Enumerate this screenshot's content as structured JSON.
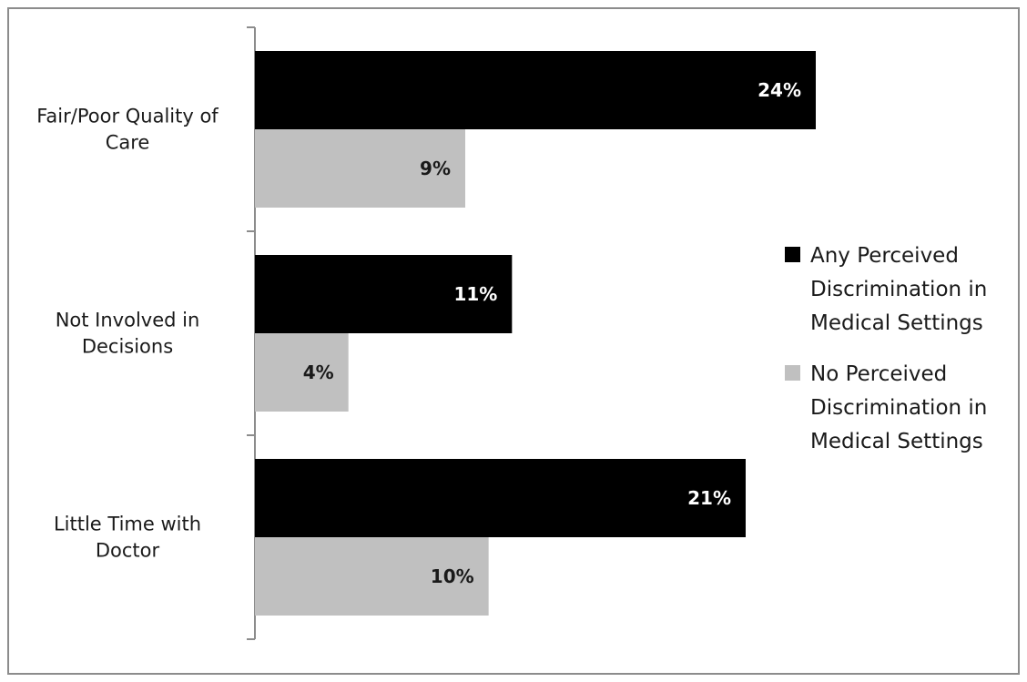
{
  "chart_data": {
    "type": "bar",
    "orientation": "horizontal",
    "categories": [
      "Fair/Poor Quality of Care",
      "Not Involved in Decisions",
      "Little Time with Doctor"
    ],
    "category_lines": [
      [
        "Fair/Poor Quality of",
        "Care"
      ],
      [
        "Not Involved in",
        "Decisions"
      ],
      [
        "Little Time with",
        "Doctor"
      ]
    ],
    "series": [
      {
        "name": "Any Perceived Discrimination in Medical Settings",
        "legend_lines": [
          "Any Perceived",
          "Discrimination in",
          "Medical Settings"
        ],
        "color": "#000000",
        "label_color": "#ffffff",
        "values": [
          24,
          11,
          21
        ],
        "labels": [
          "24%",
          "11%",
          "21%"
        ]
      },
      {
        "name": "No Perceived Discrimination in Medical Settings",
        "legend_lines": [
          "No Perceived",
          "Discrimination in",
          "Medical Settings"
        ],
        "color": "#c0c0c0",
        "label_color": "#1a1a1a",
        "values": [
          9,
          4,
          10
        ],
        "labels": [
          "9%",
          "4%",
          "10%"
        ]
      }
    ],
    "xlim": [
      0,
      30
    ],
    "grid": false,
    "legend_position": "right"
  }
}
